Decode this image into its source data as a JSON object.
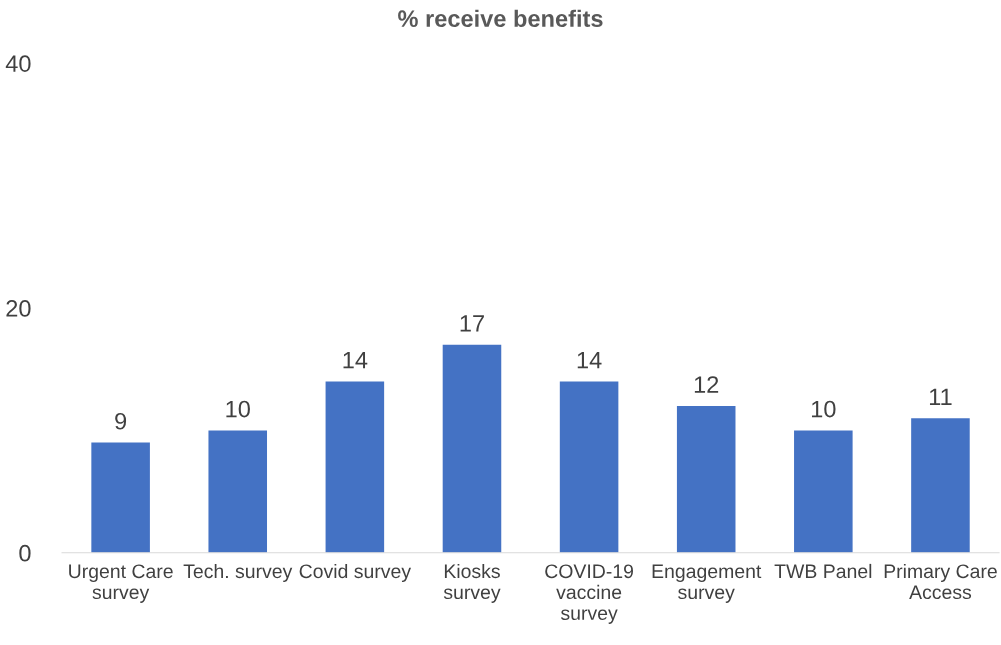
{
  "chart_data": {
    "type": "bar",
    "title": "% receive benefits",
    "categories": [
      "Urgent Care\nsurvey",
      "Tech. survey",
      "Covid survey",
      "Kiosks\nsurvey",
      "COVID-19\nvaccine\nsurvey",
      "Engagement\nsurvey",
      "TWB Panel",
      "Primary Care\nAccess"
    ],
    "values": [
      9,
      10,
      14,
      17,
      14,
      12,
      10,
      11
    ],
    "color": "#4472c4",
    "ylim": [
      0,
      40
    ],
    "yticks": [
      0,
      20,
      40
    ],
    "grid": false,
    "data_labels": true
  }
}
